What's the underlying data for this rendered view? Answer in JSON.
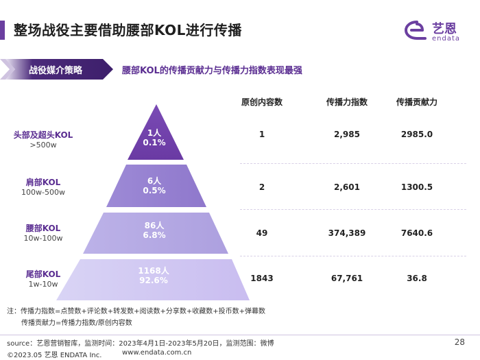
{
  "header": {
    "title": "整场战役主要借助腰部KOL进行传播",
    "logo_cn": "艺恩",
    "logo_en": "endata"
  },
  "section": {
    "tag": "战役媒介策略",
    "subtitle": "腰部KOL的传播贡献力与传播力指数表现最强"
  },
  "table": {
    "headers": [
      "原创内容数",
      "传播力指数",
      "传播贡献力"
    ],
    "rows": [
      {
        "name": "头部及超头KOL",
        "range": ">500w",
        "people": "1人",
        "pct": "0.1%",
        "content": "1",
        "index": "2,985",
        "contribution": "2985.0"
      },
      {
        "name": "肩部KOL",
        "range": "100w-500w",
        "people": "6人",
        "pct": "0.5%",
        "content": "2",
        "index": "2,601",
        "contribution": "1300.5"
      },
      {
        "name": "腰部KOL",
        "range": "10w-100w",
        "people": "86人",
        "pct": "6.8%",
        "content": "49",
        "index": "374,389",
        "contribution": "7640.6"
      },
      {
        "name": "尾部KOL",
        "range": "1w-10w",
        "people": "1168人",
        "pct": "92.6%",
        "content": "1843",
        "index": "67,761",
        "contribution": "36.8"
      }
    ]
  },
  "notes": {
    "line1": "注：传播力指数=点赞数+评论数+转发数+阅读数+分享数+收藏数+投币数+弹幕数",
    "line2": "传播贡献力=传播力指数/原创内容数"
  },
  "footer": {
    "source": "source：艺恩营销智库，监测时间：2023年4月1日-2023年5月20日，监测范围：微博",
    "copyright": "©2023.05 艺恩 ENDATA Inc.",
    "website": "www.endata.com.cn",
    "page": "28"
  },
  "colors": {
    "brand": "#6b3fa0",
    "tier1": "#6f3fa8",
    "tier4": "#d9d4f5"
  }
}
